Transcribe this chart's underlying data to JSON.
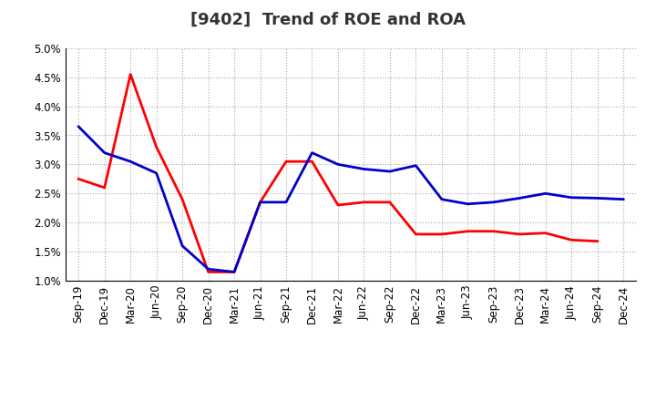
{
  "title": "[9402]  Trend of ROE and ROA",
  "x_labels": [
    "Sep-19",
    "Dec-19",
    "Mar-20",
    "Jun-20",
    "Sep-20",
    "Dec-20",
    "Mar-21",
    "Jun-21",
    "Sep-21",
    "Dec-21",
    "Mar-22",
    "Jun-22",
    "Sep-22",
    "Dec-22",
    "Mar-23",
    "Jun-23",
    "Sep-23",
    "Dec-23",
    "Mar-24",
    "Jun-24",
    "Sep-24",
    "Dec-24"
  ],
  "roe": [
    2.75,
    2.6,
    4.55,
    3.3,
    2.4,
    1.15,
    1.15,
    2.35,
    3.05,
    3.05,
    2.3,
    2.35,
    2.35,
    1.8,
    1.8,
    1.85,
    1.85,
    1.8,
    1.82,
    1.7,
    1.68,
    null
  ],
  "roa": [
    3.65,
    3.2,
    3.05,
    2.85,
    1.6,
    1.2,
    1.15,
    2.35,
    2.35,
    3.2,
    3.0,
    2.92,
    2.88,
    2.98,
    2.4,
    2.32,
    2.35,
    2.42,
    2.5,
    2.43,
    2.42,
    2.4
  ],
  "ylim_min": 1.0,
  "ylim_max": 5.0,
  "yticks": [
    1.0,
    1.5,
    2.0,
    2.5,
    3.0,
    3.5,
    4.0,
    4.5,
    5.0
  ],
  "roe_color": "#ff0000",
  "roa_color": "#0000cc",
  "background_color": "#ffffff",
  "grid_color": "#aaaaaa",
  "title_fontsize": 13,
  "axis_fontsize": 8.5,
  "legend_fontsize": 10,
  "line_width": 2.0
}
